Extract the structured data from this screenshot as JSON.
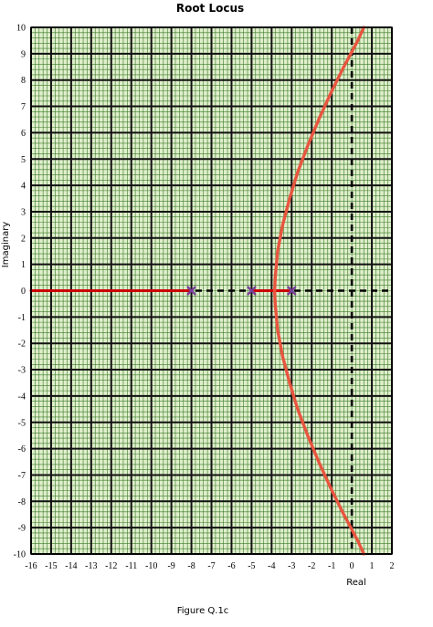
{
  "chart_data": {
    "type": "line",
    "title": "Root Locus",
    "xlabel": "Real",
    "ylabel": "Imaginary",
    "caption": "Figure Q.1c",
    "xlim": [
      -16,
      2
    ],
    "ylim": [
      -10,
      10
    ],
    "xticks": [
      -16,
      -15,
      -14,
      -13,
      -12,
      -11,
      -10,
      -9,
      -8,
      -7,
      -6,
      -5,
      -4,
      -3,
      -2,
      -1,
      0,
      1,
      2
    ],
    "yticks": [
      -10,
      -9,
      -8,
      -7,
      -6,
      -5,
      -4,
      -3,
      -2,
      -1,
      0,
      1,
      2,
      3,
      4,
      5,
      6,
      7,
      8,
      9,
      10
    ],
    "grid": true,
    "colors": {
      "background": "#dfeecb",
      "locus": "#e8553f",
      "real_axis_locus": "#cc0000",
      "pole": "#7a3f9a",
      "grid_major": "#111111",
      "grid_minor": "#3a7a2a"
    },
    "poles": [
      {
        "x": -8,
        "y": 0
      },
      {
        "x": -5,
        "y": 0
      },
      {
        "x": -3,
        "y": 0
      }
    ],
    "series": [
      {
        "values_desc": "locus_real_axis",
        "x": [
          -16,
          -8
        ],
        "y": [
          0,
          0
        ]
      },
      {
        "values_desc": "locus_real_axis_between",
        "x": [
          -5,
          -3
        ],
        "y": [
          0,
          0
        ]
      },
      {
        "values_desc": "locus_upper",
        "x": [
          -3.85,
          -3.82,
          -3.7,
          -3.45,
          -3.1,
          -2.7,
          -2.2,
          -1.65,
          -1.05,
          -0.4,
          0.3,
          0.6
        ],
        "y": [
          0,
          0.5,
          1.5,
          2.5,
          3.5,
          4.5,
          5.5,
          6.5,
          7.5,
          8.5,
          9.5,
          10
        ]
      },
      {
        "values_desc": "locus_lower",
        "x": [
          -3.85,
          -3.82,
          -3.7,
          -3.45,
          -3.1,
          -2.7,
          -2.2,
          -1.65,
          -1.05,
          -0.4,
          0.3,
          0.6
        ],
        "y": [
          0,
          -0.5,
          -1.5,
          -2.5,
          -3.5,
          -4.5,
          -5.5,
          -6.5,
          -7.5,
          -8.5,
          -9.5,
          -10
        ]
      }
    ]
  }
}
